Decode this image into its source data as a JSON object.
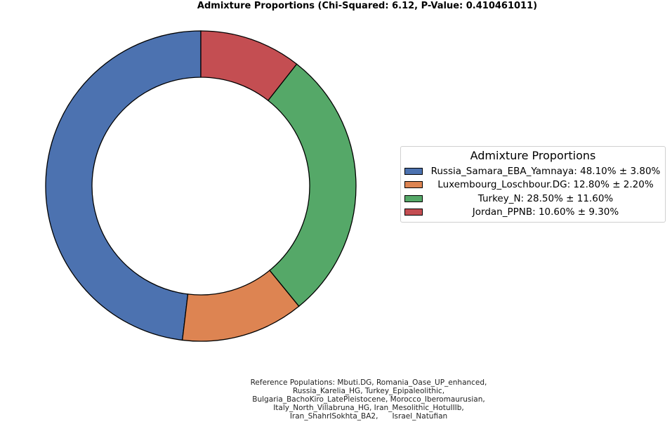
{
  "chart_data": {
    "type": "pie",
    "style": "donut",
    "title": "Admixture Proportions (Chi-Squared: 6.12, P-Value: 0.410461011)",
    "start_angle_deg": 90,
    "direction": "counterclockwise",
    "slices": [
      {
        "name": "Russia_Samara_EBA_Yamnaya",
        "value": 48.1,
        "error": 3.8,
        "color": "#4c72b0",
        "legend_label": "Russia_Samara_EBA_Yamnaya: 48.10% ± 3.80%"
      },
      {
        "name": "Luxembourg_Loschbour.DG",
        "value": 12.8,
        "error": 2.2,
        "color": "#dd8452",
        "legend_label": "Luxembourg_Loschbour.DG: 12.80% ± 2.20%"
      },
      {
        "name": "Turkey_N",
        "value": 28.5,
        "error": 11.6,
        "color": "#55a868",
        "legend_label": "Turkey_N: 28.50% ± 11.60%"
      },
      {
        "name": "Jordan_PPNB",
        "value": 10.6,
        "error": 9.3,
        "color": "#c44e52",
        "legend_label": "Jordan_PPNB: 10.60% ± 9.30%"
      }
    ],
    "legend": {
      "title": "Admixture Proportions",
      "placement": "right"
    }
  },
  "footnote": {
    "lines": [
      "Reference Populations: Mbuti.DG, Romania_Oase_UP_enhanced,",
      "Russia_Karelia_HG, Turkey_Epipaleolithic,",
      "Bulgaria_BachoKiro_LatePleistocene, Morocco_Iberomaurusian,",
      "Italy_North_Villabruna_HG, Iran_Mesolithic_HotuIIIb,",
      "Iran_ShahrISokhta_BA2,      Israel_Natufian"
    ]
  }
}
